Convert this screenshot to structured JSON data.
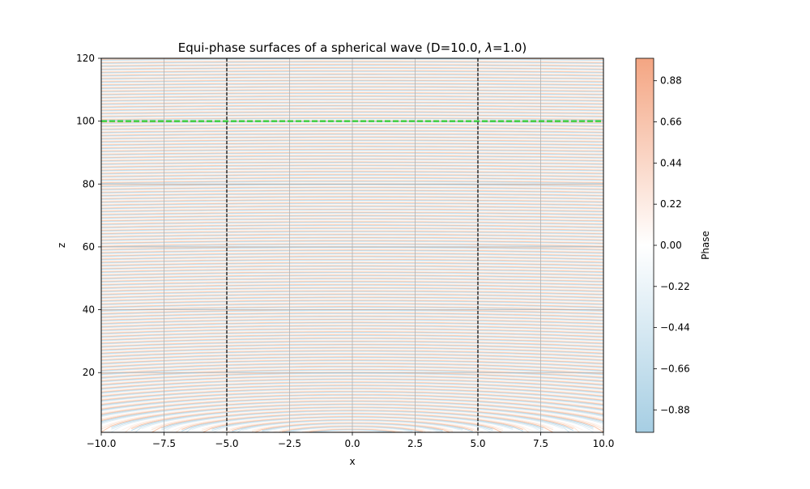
{
  "chart_data": {
    "type": "contour",
    "title": "Equi-phase surfaces of a spherical wave (D=10.0, λ=1.0)",
    "title_parts": {
      "prefix": "Equi-phase surfaces of a spherical wave (D=10.0, ",
      "lambda_symbol": "λ",
      "suffix": "=1.0)"
    },
    "xlabel": "x",
    "ylabel": "z",
    "xlim": [
      -10.0,
      10.0
    ],
    "ylim": [
      1,
      120
    ],
    "xticks": [
      -10.0,
      -7.5,
      -5.0,
      -2.5,
      0.0,
      2.5,
      5.0,
      7.5,
      10.0
    ],
    "xtick_labels": [
      "−10.0",
      "−7.5",
      "−5.0",
      "−2.5",
      "0.0",
      "2.5",
      "5.0",
      "7.5",
      "10.0"
    ],
    "yticks": [
      20,
      40,
      60,
      80,
      100,
      120
    ],
    "ytick_labels": [
      "20",
      "40",
      "60",
      "80",
      "100",
      "120"
    ],
    "grid": true,
    "wavelength": 1.0,
    "aperture_D": 10.0,
    "aperture_edges_x": [
      -5.0,
      5.0
    ],
    "reference_line_z": 100,
    "reference_line_color": "#33cc33",
    "aperture_line_color": "#000000",
    "colorbar": {
      "label": "Phase",
      "range": [
        -1.0,
        1.0
      ],
      "ticks": [
        -0.88,
        -0.66,
        -0.44,
        -0.22,
        0.0,
        0.22,
        0.44,
        0.66,
        0.88
      ],
      "tick_labels": [
        "−0.88",
        "−0.66",
        "−0.44",
        "−0.22",
        "0.00",
        "0.22",
        "0.44",
        "0.66",
        "0.88"
      ],
      "colors": {
        "negative": "#a6cee3",
        "middle": "#ffffff",
        "positive": "#f4a582"
      }
    }
  }
}
